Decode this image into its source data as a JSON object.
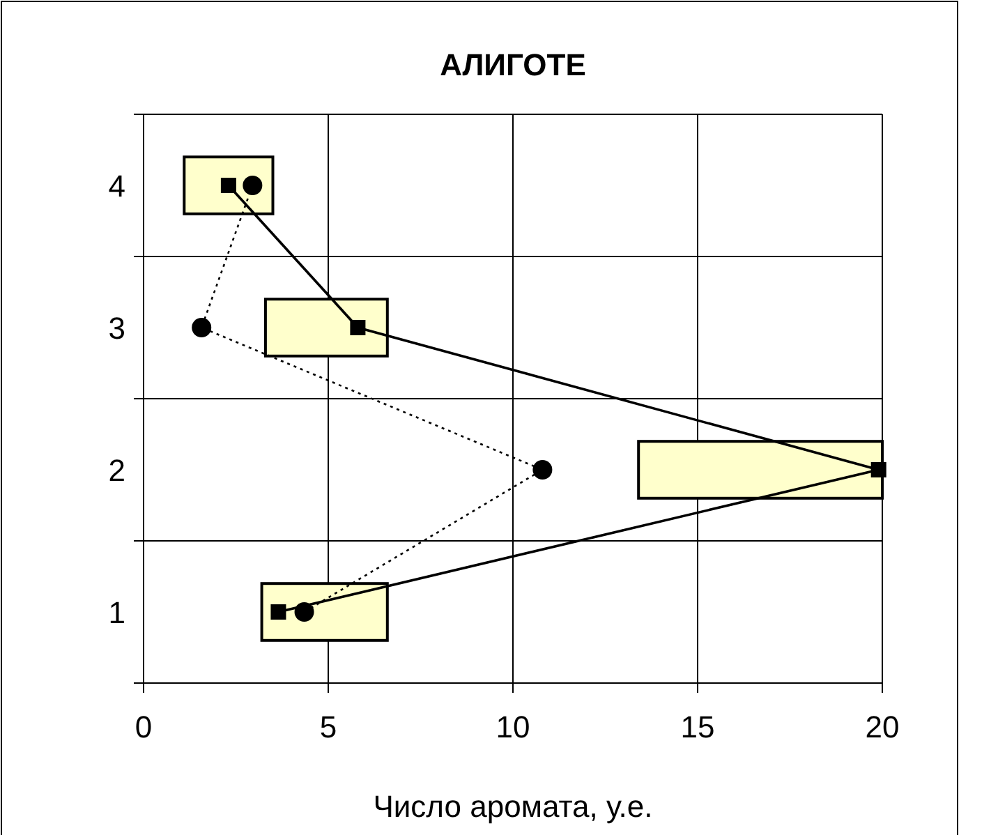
{
  "chart_data": {
    "type": "bar",
    "orientation": "horizontal",
    "title": "АЛИГОТЕ",
    "xlabel": "Число аромата, у.е.",
    "categories": [
      "4",
      "3",
      "2",
      "1"
    ],
    "xlim": [
      0,
      20
    ],
    "xticks": [
      0,
      5,
      10,
      15,
      20
    ],
    "grid": true,
    "series": [
      {
        "color": "#ffffcc",
        "base": [
          1.1,
          3.3,
          13.4,
          3.2
        ],
        "values": [
          2.4,
          3.3,
          6.6,
          3.4
        ]
      },
      {
        "type": "line",
        "color": "#000000",
        "values": [
          2.3,
          5.8,
          19.9,
          3.65
        ],
        "marker": "square",
        "line_style": "solid"
      },
      {
        "type": "line",
        "color": "#000000",
        "values": [
          2.95,
          1.57,
          10.8,
          4.35
        ],
        "marker": "circle",
        "line_style": "dotted"
      }
    ]
  }
}
